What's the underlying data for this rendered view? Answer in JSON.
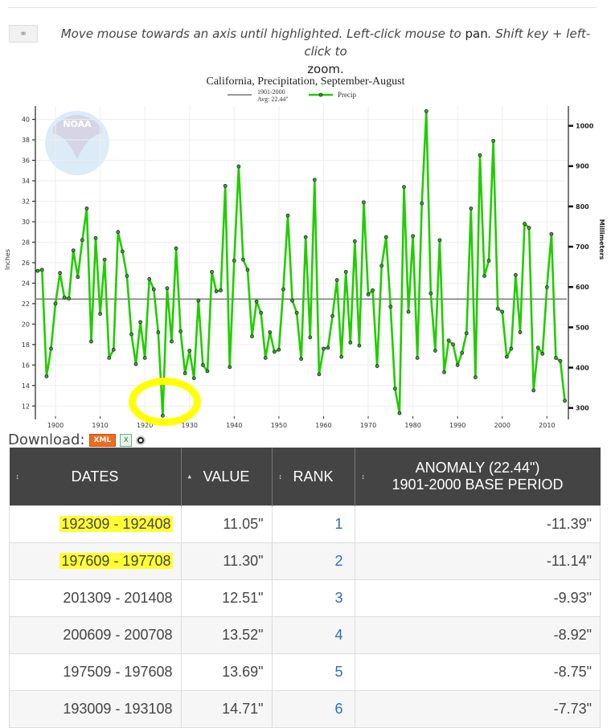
{
  "toolbar": {
    "link_icon": "link-icon",
    "instructions_part1": "Move mouse towards an axis until highlighted. Left-click mouse to ",
    "instructions_pan": "pan",
    "instructions_part2": ". Shift key + left-click to ",
    "instructions_zoom": "zoom."
  },
  "download": {
    "label": "Download:",
    "xml_label": "XML",
    "excel_icon": "excel-icon",
    "other_icon": "circle-icon"
  },
  "chart_data": {
    "type": "line",
    "title": "California, Precipitation, September-August",
    "legend": [
      {
        "name": "1901-2000",
        "sub": "Avg: 22.44\"",
        "style": "gray-line"
      },
      {
        "name": "Precip",
        "style": "green-line-markers"
      }
    ],
    "xlabel": "",
    "ylabel": "Inches",
    "y2label": "Millimeters",
    "ylim": [
      11,
      41
    ],
    "y_ticks": [
      12,
      14,
      16,
      18,
      20,
      22,
      24,
      26,
      28,
      30,
      32,
      34,
      36,
      38,
      40
    ],
    "y2_ticks": [
      300,
      400,
      500,
      600,
      700,
      800,
      900,
      1000
    ],
    "x_ticks": [
      1900,
      1910,
      1920,
      1930,
      1940,
      1950,
      1960,
      1970,
      1980,
      1990,
      2000,
      2010
    ],
    "grid": true,
    "average": 22.44,
    "colors": {
      "series": "#22cc00",
      "average": "#888888"
    },
    "x": [
      1896,
      1897,
      1898,
      1899,
      1900,
      1901,
      1902,
      1903,
      1904,
      1905,
      1906,
      1907,
      1908,
      1909,
      1910,
      1911,
      1912,
      1913,
      1914,
      1915,
      1916,
      1917,
      1918,
      1919,
      1920,
      1921,
      1922,
      1923,
      1924,
      1925,
      1926,
      1927,
      1928,
      1929,
      1930,
      1931,
      1932,
      1933,
      1934,
      1935,
      1936,
      1937,
      1938,
      1939,
      1940,
      1941,
      1942,
      1943,
      1944,
      1945,
      1946,
      1947,
      1948,
      1949,
      1950,
      1951,
      1952,
      1953,
      1954,
      1955,
      1956,
      1957,
      1958,
      1959,
      1960,
      1961,
      1962,
      1963,
      1964,
      1965,
      1966,
      1967,
      1968,
      1969,
      1970,
      1971,
      1972,
      1973,
      1974,
      1975,
      1976,
      1977,
      1978,
      1979,
      1980,
      1981,
      1982,
      1983,
      1984,
      1985,
      1986,
      1987,
      1988,
      1989,
      1990,
      1991,
      1992,
      1993,
      1994,
      1995,
      1996,
      1997,
      1998,
      1999,
      2000,
      2001,
      2002,
      2003,
      2004,
      2005,
      2006,
      2007,
      2008,
      2009,
      2010,
      2011,
      2012,
      2013,
      2014
    ],
    "values": [
      25.2,
      25.3,
      14.9,
      17.6,
      22.0,
      25.0,
      22.6,
      22.5,
      27.2,
      24.6,
      28.2,
      31.3,
      18.3,
      28.4,
      21.0,
      26.3,
      16.7,
      17.5,
      29.0,
      27.1,
      24.7,
      19.0,
      16.1,
      20.2,
      16.7,
      24.4,
      23.4,
      19.2,
      11.05,
      23.5,
      18.3,
      27.4,
      19.3,
      15.2,
      17.4,
      14.71,
      22.3,
      16.0,
      15.4,
      25.1,
      23.2,
      23.3,
      33.5,
      15.8,
      26.2,
      35.4,
      26.3,
      25.3,
      18.8,
      22.2,
      21.1,
      16.7,
      19.2,
      17.3,
      17.5,
      23.4,
      30.6,
      22.3,
      21.1,
      16.6,
      28.5,
      18.7,
      34.1,
      15.1,
      17.6,
      17.7,
      20.8,
      24.3,
      16.8,
      25.1,
      18.2,
      28.1,
      17.9,
      31.9,
      22.9,
      23.3,
      15.9,
      25.7,
      28.5,
      21.7,
      13.69,
      11.3,
      33.4,
      21.2,
      28.6,
      16.7,
      31.8,
      40.8,
      23.0,
      17.4,
      28.2,
      15.3,
      18.4,
      18.0,
      16.0,
      17.2,
      19.1,
      31.3,
      14.8,
      36.5,
      24.7,
      26.2,
      37.9,
      21.5,
      21.2,
      16.8,
      17.6,
      24.8,
      19.2,
      29.8,
      29.4,
      13.52,
      17.7,
      17.1,
      23.6,
      28.8,
      16.7,
      16.4,
      12.51
    ]
  },
  "table": {
    "headers": [
      {
        "label": "DATES",
        "sort": "↕"
      },
      {
        "label": "VALUE",
        "sort": "▴"
      },
      {
        "label": "RANK",
        "sort": "↕"
      },
      {
        "label": "ANOMALY (22.44\")",
        "label2": "1901-2000 BASE PERIOD",
        "sort": "↕"
      }
    ],
    "rows": [
      {
        "dates": "192309 - 192408",
        "value": "11.05\"",
        "rank": "1",
        "anomaly": "-11.39\"",
        "highlight": true
      },
      {
        "dates": "197609 - 197708",
        "value": "11.30\"",
        "rank": "2",
        "anomaly": "-11.14\"",
        "highlight": true
      },
      {
        "dates": "201309 - 201408",
        "value": "12.51\"",
        "rank": "3",
        "anomaly": "-9.93\""
      },
      {
        "dates": "200609 - 200708",
        "value": "13.52\"",
        "rank": "4",
        "anomaly": "-8.92\""
      },
      {
        "dates": "197509 - 197608",
        "value": "13.69\"",
        "rank": "5",
        "anomaly": "-8.75\""
      },
      {
        "dates": "193009 - 193108",
        "value": "14.71\"",
        "rank": "6",
        "anomaly": "-7.73\""
      }
    ]
  }
}
